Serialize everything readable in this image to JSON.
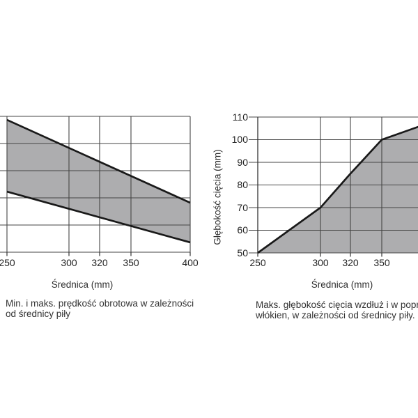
{
  "colors": {
    "fill": "#adadaf",
    "grid": "#454545",
    "axis": "#333333",
    "line": "#191919",
    "text": "#232323",
    "background": "#ffffff"
  },
  "chart_data": [
    {
      "type": "area",
      "subtype": "band between min and max lines",
      "title": "",
      "xlabel": "Średnica (mm)",
      "x_ticks": [
        250,
        300,
        320,
        350,
        400
      ],
      "ylabel": "",
      "y_axis_note": "y-axis and its labels are cropped off the left edge of the image; 6 horizontal gridlines (5 equal intervals), values expressed in grid units 0–5 from bottom",
      "series": [
        {
          "name": "maks. prędkość obrotowa (upper bound)",
          "x": [
            250,
            400
          ],
          "y_units": [
            4.87,
            1.82
          ]
        },
        {
          "name": "min. prędkość obrotowa (lower bound)",
          "x": [
            250,
            400
          ],
          "y_units": [
            2.23,
            0.36
          ]
        }
      ],
      "legend": "none",
      "grid": "on",
      "caption_lines": [
        "Min. i maks. prędkość obrotowa w zależności",
        "od średnicy piły"
      ],
      "caption": "Min. i maks. prędkość obrotowa w zależności od średnicy piły"
    },
    {
      "type": "area",
      "title": "",
      "xlabel": "Średnica (mm)",
      "ylabel": "Głębokość cięcia (mm)",
      "x_ticks": [
        250,
        300,
        320,
        350
      ],
      "y_ticks": [
        50,
        60,
        70,
        80,
        90,
        100,
        110
      ],
      "ylim": [
        50,
        110
      ],
      "series": [
        {
          "name": "maks. głębokość cięcia",
          "points": [
            [
              250,
              50
            ],
            [
              300,
              70
            ],
            [
              320,
              85
            ],
            [
              350,
              100
            ],
            [
              381,
              106
            ]
          ],
          "clipped_at_right_edge": true
        }
      ],
      "legend": "none",
      "grid": "on",
      "caption_lines": [
        "Maks. głębokość cięcia wzdłuż i w poprzek",
        "włókien, w zależności od średnicy piły."
      ],
      "caption": "Maks. głębokość cięcia wzdłuż i w poprzek włókien, w zależności od średnicy piły."
    }
  ]
}
